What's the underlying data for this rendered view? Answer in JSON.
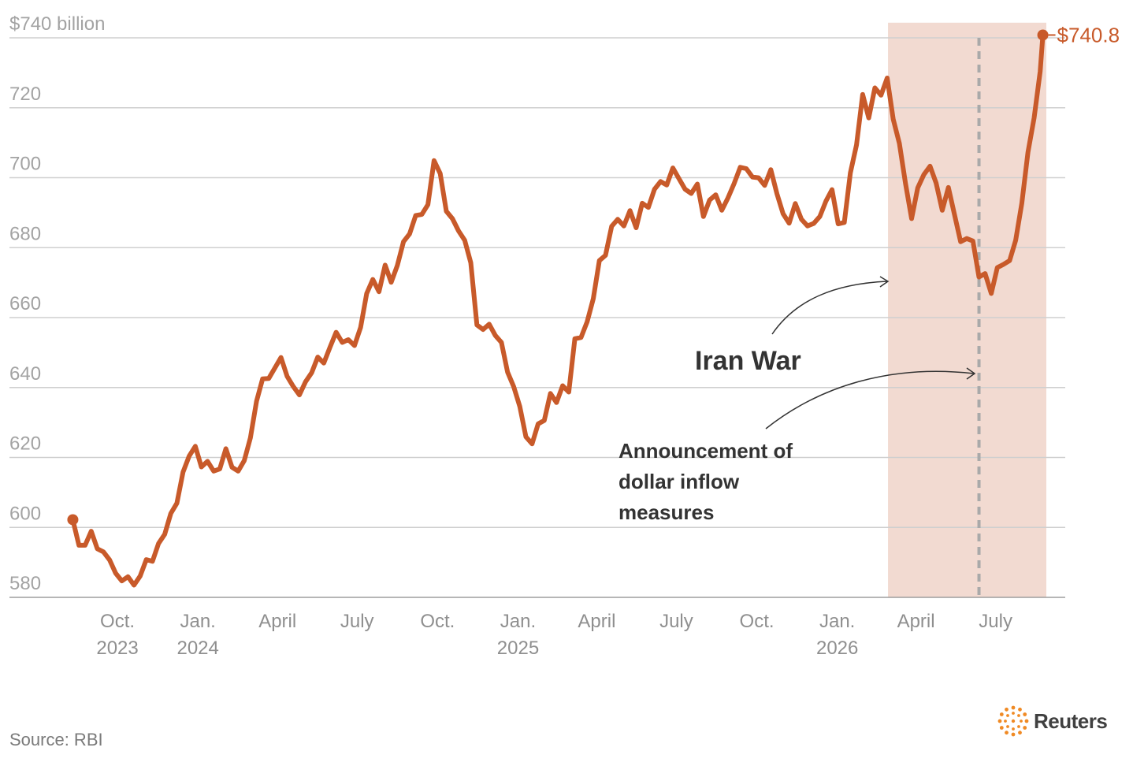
{
  "chart_data": {
    "type": "line",
    "y_unit_label": "$740 billion",
    "ylim": [
      575,
      745
    ],
    "y_ticks": [
      580,
      600,
      620,
      640,
      660,
      680,
      700,
      720
    ],
    "x_ticks": [
      {
        "x": "2023-10-01",
        "line1": "Oct.",
        "line2": "2023"
      },
      {
        "x": "2024-01-01",
        "line1": "Jan.",
        "line2": "2024"
      },
      {
        "x": "2024-04-01",
        "line1": "April",
        "line2": ""
      },
      {
        "x": "2024-07-01",
        "line1": "July",
        "line2": ""
      },
      {
        "x": "2024-10-01",
        "line1": "Oct.",
        "line2": ""
      },
      {
        "x": "2025-01-01",
        "line1": "Jan.",
        "line2": "2025"
      },
      {
        "x": "2025-04-01",
        "line1": "April",
        "line2": ""
      },
      {
        "x": "2025-07-01",
        "line1": "July",
        "line2": ""
      },
      {
        "x": "2025-10-01",
        "line1": "Oct.",
        "line2": ""
      },
      {
        "x": "2026-01-01",
        "line1": "Jan.",
        "line2": "2026"
      },
      {
        "x": "2026-04-01",
        "line1": "April",
        "line2": ""
      },
      {
        "x": "2026-07-01",
        "line1": "July",
        "line2": ""
      }
    ],
    "x_range": [
      "2023-08-07",
      "2026-08-28"
    ],
    "series": [
      {
        "color": "#c85a2a",
        "points": [
          [
            "2023-08-11",
            602.2
          ],
          [
            "2023-08-18",
            594.9
          ],
          [
            "2023-08-25",
            594.9
          ],
          [
            "2023-09-01",
            598.9
          ],
          [
            "2023-09-08",
            593.9
          ],
          [
            "2023-09-15",
            593.0
          ],
          [
            "2023-09-22",
            590.7
          ],
          [
            "2023-09-29",
            586.9
          ],
          [
            "2023-10-06",
            584.7
          ],
          [
            "2023-10-13",
            585.9
          ],
          [
            "2023-10-20",
            583.5
          ],
          [
            "2023-10-27",
            586.1
          ],
          [
            "2023-11-03",
            590.8
          ],
          [
            "2023-11-10",
            590.3
          ],
          [
            "2023-11-17",
            595.4
          ],
          [
            "2023-11-24",
            598.0
          ],
          [
            "2023-12-01",
            604.0
          ],
          [
            "2023-12-08",
            606.9
          ],
          [
            "2023-12-15",
            615.8
          ],
          [
            "2023-12-22",
            620.4
          ],
          [
            "2023-12-29",
            623.2
          ],
          [
            "2024-01-05",
            617.3
          ],
          [
            "2024-01-12",
            618.9
          ],
          [
            "2024-01-19",
            616.1
          ],
          [
            "2024-01-26",
            616.7
          ],
          [
            "2024-02-02",
            622.5
          ],
          [
            "2024-02-09",
            617.2
          ],
          [
            "2024-02-16",
            616.1
          ],
          [
            "2024-02-23",
            619.1
          ],
          [
            "2024-03-01",
            625.6
          ],
          [
            "2024-03-08",
            636.1
          ],
          [
            "2024-03-15",
            642.5
          ],
          [
            "2024-03-22",
            642.6
          ],
          [
            "2024-03-29",
            645.6
          ],
          [
            "2024-04-05",
            648.6
          ],
          [
            "2024-04-12",
            643.2
          ],
          [
            "2024-04-19",
            640.3
          ],
          [
            "2024-04-26",
            637.9
          ],
          [
            "2024-05-03",
            641.6
          ],
          [
            "2024-05-10",
            644.2
          ],
          [
            "2024-05-17",
            648.7
          ],
          [
            "2024-05-24",
            647.0
          ],
          [
            "2024-05-31",
            651.5
          ],
          [
            "2024-06-07",
            655.8
          ],
          [
            "2024-06-14",
            652.9
          ],
          [
            "2024-06-21",
            653.7
          ],
          [
            "2024-06-28",
            652.0
          ],
          [
            "2024-07-05",
            657.2
          ],
          [
            "2024-07-12",
            666.9
          ],
          [
            "2024-07-19",
            670.9
          ],
          [
            "2024-07-26",
            667.4
          ],
          [
            "2024-08-02",
            675.0
          ],
          [
            "2024-08-09",
            670.1
          ],
          [
            "2024-08-16",
            674.9
          ],
          [
            "2024-08-23",
            681.7
          ],
          [
            "2024-08-30",
            683.9
          ],
          [
            "2024-09-06",
            689.2
          ],
          [
            "2024-09-13",
            689.5
          ],
          [
            "2024-09-20",
            692.3
          ],
          [
            "2024-09-27",
            704.9
          ],
          [
            "2024-10-04",
            701.2
          ],
          [
            "2024-10-11",
            690.4
          ],
          [
            "2024-10-18",
            688.3
          ],
          [
            "2024-10-25",
            684.8
          ],
          [
            "2024-11-01",
            682.1
          ],
          [
            "2024-11-08",
            675.7
          ],
          [
            "2024-11-15",
            657.9
          ],
          [
            "2024-11-22",
            656.6
          ],
          [
            "2024-11-29",
            658.1
          ],
          [
            "2024-12-06",
            654.9
          ],
          [
            "2024-12-13",
            652.9
          ],
          [
            "2024-12-20",
            644.4
          ],
          [
            "2024-12-27",
            640.3
          ],
          [
            "2025-01-03",
            634.6
          ],
          [
            "2025-01-10",
            625.9
          ],
          [
            "2025-01-17",
            623.9
          ],
          [
            "2025-01-24",
            629.6
          ],
          [
            "2025-01-31",
            630.6
          ],
          [
            "2025-02-07",
            638.3
          ],
          [
            "2025-02-14",
            635.7
          ],
          [
            "2025-02-21",
            640.5
          ],
          [
            "2025-02-28",
            638.7
          ],
          [
            "2025-03-07",
            653.97
          ],
          [
            "2025-03-14",
            654.3
          ],
          [
            "2025-03-21",
            658.8
          ],
          [
            "2025-03-28",
            665.4
          ],
          [
            "2025-04-04",
            676.3
          ],
          [
            "2025-04-11",
            677.8
          ],
          [
            "2025-04-18",
            686.1
          ],
          [
            "2025-04-25",
            688.1
          ],
          [
            "2025-05-02",
            686.2
          ],
          [
            "2025-05-09",
            690.6
          ],
          [
            "2025-05-16",
            685.7
          ],
          [
            "2025-05-23",
            692.7
          ],
          [
            "2025-05-30",
            691.5
          ],
          [
            "2025-06-06",
            696.7
          ],
          [
            "2025-06-13",
            698.9
          ],
          [
            "2025-06-20",
            697.9
          ],
          [
            "2025-06-27",
            702.8
          ],
          [
            "2025-07-04",
            699.7
          ],
          [
            "2025-07-11",
            696.7
          ],
          [
            "2025-07-18",
            695.5
          ],
          [
            "2025-07-25",
            698.2
          ],
          [
            "2025-08-01",
            688.9
          ],
          [
            "2025-08-08",
            693.6
          ],
          [
            "2025-08-15",
            695.1
          ],
          [
            "2025-08-22",
            690.7
          ],
          [
            "2025-08-29",
            694.2
          ],
          [
            "2025-09-05",
            698.3
          ],
          [
            "2025-09-12",
            702.97
          ],
          [
            "2025-09-19",
            702.6
          ],
          [
            "2025-09-26",
            700.2
          ],
          [
            "2025-10-03",
            699.97
          ],
          [
            "2025-10-10",
            697.8
          ],
          [
            "2025-10-17",
            702.3
          ],
          [
            "2025-10-24",
            695.4
          ],
          [
            "2025-10-31",
            689.7
          ],
          [
            "2025-11-07",
            687.0
          ],
          [
            "2025-11-14",
            692.6
          ],
          [
            "2025-11-21",
            688.1
          ],
          [
            "2025-11-28",
            686.2
          ],
          [
            "2025-12-05",
            686.9
          ],
          [
            "2025-12-12",
            688.9
          ],
          [
            "2025-12-19",
            693.3
          ],
          [
            "2025-12-26",
            696.6
          ],
          [
            "2026-01-02",
            686.8
          ],
          [
            "2026-01-09",
            687.2
          ],
          [
            "2026-01-16",
            701.4
          ],
          [
            "2026-01-23",
            709.4
          ],
          [
            "2026-01-30",
            723.8
          ],
          [
            "2026-02-06",
            717.1
          ],
          [
            "2026-02-13",
            725.7
          ],
          [
            "2026-02-20",
            723.6
          ],
          [
            "2026-02-27",
            728.5
          ],
          [
            "2026-03-06",
            716.7
          ],
          [
            "2026-03-13",
            709.8
          ],
          [
            "2026-03-20",
            698.3
          ],
          [
            "2026-03-27",
            688.3
          ],
          [
            "2026-04-03",
            697.1
          ],
          [
            "2026-04-10",
            700.9
          ],
          [
            "2026-04-17",
            703.3
          ],
          [
            "2026-04-24",
            698.5
          ],
          [
            "2026-05-01",
            690.7
          ],
          [
            "2026-05-08",
            697.2
          ],
          [
            "2026-05-15",
            689.5
          ],
          [
            "2026-05-22",
            681.7
          ],
          [
            "2026-05-29",
            682.6
          ],
          [
            "2026-06-05",
            681.9
          ],
          [
            "2026-06-12",
            671.6
          ],
          [
            "2026-06-19",
            672.6
          ],
          [
            "2026-06-26",
            666.9
          ],
          [
            "2026-07-03",
            674.3
          ],
          [
            "2026-07-10",
            675.2
          ],
          [
            "2026-07-17",
            676.3
          ],
          [
            "2026-07-24",
            682.1
          ],
          [
            "2026-07-31",
            692.7
          ],
          [
            "2026-08-07",
            707.3
          ],
          [
            "2026-08-14",
            717.1
          ],
          [
            "2026-08-21",
            730.4
          ],
          [
            "2026-08-24",
            740.8
          ]
        ]
      }
    ],
    "end_label": "$740.8",
    "shaded_period": [
      "2026-02-28",
      "2026-08-28"
    ],
    "shade_color": "#f2dad1",
    "event_line": {
      "x": "2026-06-12",
      "color": "#a9a9a9"
    },
    "annotations": [
      {
        "id": "iran-war",
        "lines": [
          "Iran War"
        ]
      },
      {
        "id": "inflow",
        "lines": [
          "Announcement of",
          "dollar inflow",
          "measures"
        ]
      }
    ]
  },
  "source": "Source: RBI",
  "brand": "Reuters"
}
